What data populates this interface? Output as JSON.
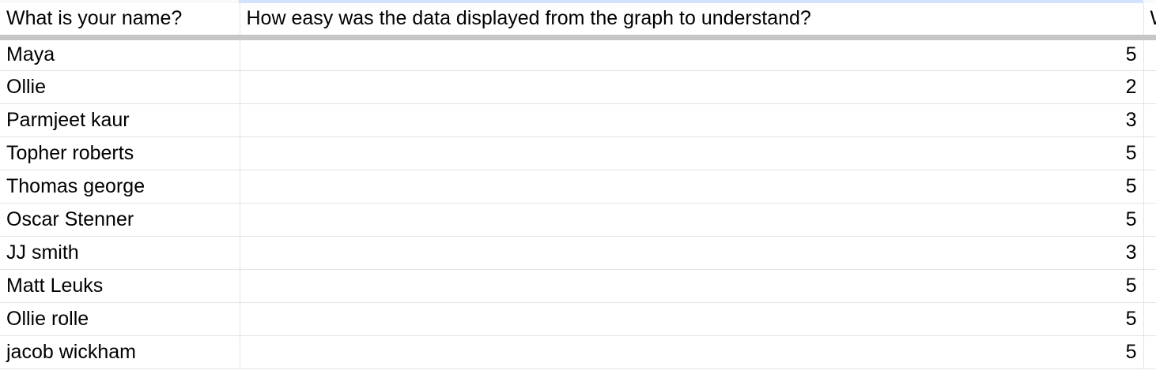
{
  "columns": [
    "What is your name?",
    "How easy was the data displayed from the graph to understand?",
    "W"
  ],
  "rows": [
    {
      "name": "Maya",
      "rating": "5"
    },
    {
      "name": "Ollie",
      "rating": "2"
    },
    {
      "name": "Parmjeet kaur",
      "rating": "3"
    },
    {
      "name": "Topher roberts",
      "rating": "5"
    },
    {
      "name": "Thomas george",
      "rating": "5"
    },
    {
      "name": "Oscar Stenner",
      "rating": "5"
    },
    {
      "name": "JJ smith",
      "rating": "3"
    },
    {
      "name": "Matt Leuks",
      "rating": "5"
    },
    {
      "name": "Ollie rolle",
      "rating": "5"
    },
    {
      "name": "jacob wickham",
      "rating": "5"
    }
  ],
  "colors": {
    "selected_column_header": "#d3e3fd",
    "gridline": "#e2e3e3",
    "frozen_row_divider": "#c6c6c6"
  }
}
